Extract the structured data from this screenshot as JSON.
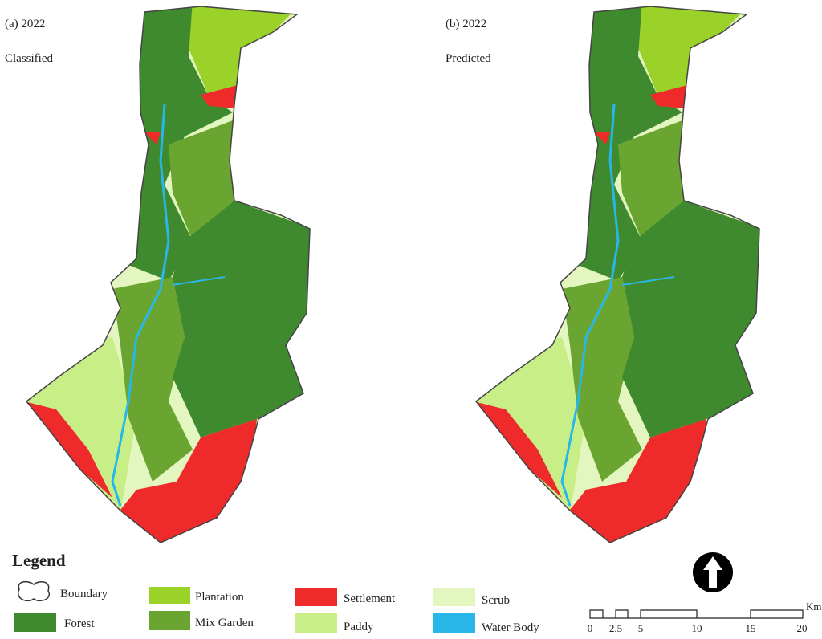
{
  "maps": [
    {
      "label": "(a) 2022",
      "caption": "Classified"
    },
    {
      "label": "(b) 2022",
      "caption": "Predicted"
    }
  ],
  "legend": {
    "title": "Legend",
    "items": [
      "Boundary",
      "Forest",
      "Plantation",
      "Mix Garden",
      "Settlement",
      "Paddy",
      "Scrub",
      "Water Body"
    ]
  },
  "scale_bar": {
    "labels": [
      "0",
      "2.5",
      "5",
      "10",
      "15",
      "20"
    ],
    "unit": "Km"
  }
}
